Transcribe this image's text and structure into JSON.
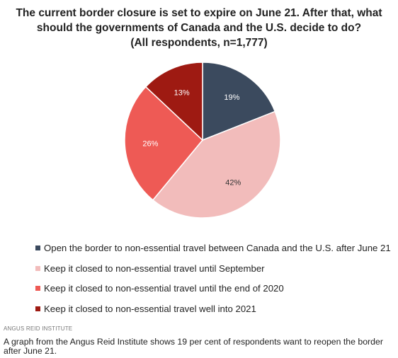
{
  "chart_data": {
    "type": "pie",
    "title_lines": [
      "The current border closure is set to expire on June 21. After that, what",
      "should the governments of Canada and the U.S. decide to do?",
      "(All respondents, n=1,777)"
    ],
    "slices": [
      {
        "label": "Open the border to non-essential travel between Canada and the U.S. after June 21",
        "value": 19,
        "value_label": "19%",
        "color": "#3b4a5e",
        "label_color": "#ffffff"
      },
      {
        "label": "Keep it closed to non-essential travel until September",
        "value": 42,
        "value_label": "42%",
        "color": "#f2bcbb",
        "label_color": "#333333"
      },
      {
        "label": "Keep it closed to non-essential travel until the end of 2020",
        "value": 26,
        "value_label": "26%",
        "color": "#ee5a55",
        "label_color": "#ffffff"
      },
      {
        "label": "Keep it closed to non-essential travel well into 2021",
        "value": 13,
        "value_label": "13%",
        "color": "#9e1a12",
        "label_color": "#ffffff"
      }
    ],
    "legend_position": "bottom"
  },
  "source": "ANGUS REID INSTITUTE",
  "caption": "A graph from the Angus Reid Institute shows 19 per cent of respondents want to reopen the border after June 21."
}
